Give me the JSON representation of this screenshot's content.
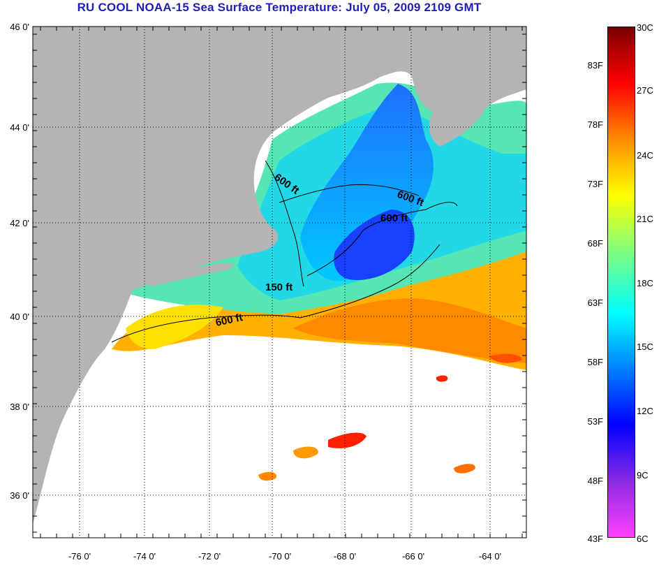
{
  "title": "RU COOL  NOAA-15  Sea Surface Temperature:  July 05, 2009 2109 GMT",
  "map": {
    "lat_ticks": [
      "46 0'",
      "44 0'",
      "42 0'",
      "40 0'",
      "38 0'",
      "36 0'"
    ],
    "lon_ticks": [
      "-76 0'",
      "-74 0'",
      "-72 0'",
      "-70 0'",
      "-68 0'",
      "-66 0'",
      "-64 0'"
    ],
    "contour_labels": [
      "600 ft",
      "600 ft",
      "600 ft",
      "150 ft",
      "600 ft"
    ],
    "colors": {
      "land": "#b4b4b4",
      "no_data": "#ffffff"
    }
  },
  "colorbar": {
    "fahrenheit": [
      "83F",
      "78F",
      "73F",
      "68F",
      "63F",
      "58F",
      "53F",
      "48F",
      "43F"
    ],
    "celsius": [
      "30C",
      "27C",
      "24C",
      "21C",
      "18C",
      "15C",
      "12C",
      "9C",
      "6C"
    ],
    "colors_top_to_bottom": [
      "#7a0000",
      "#ff0000",
      "#ff8c00",
      "#ffff00",
      "#7fff7f",
      "#00ffff",
      "#0080ff",
      "#0000ff",
      "#8a2be2",
      "#ff40ff"
    ]
  }
}
